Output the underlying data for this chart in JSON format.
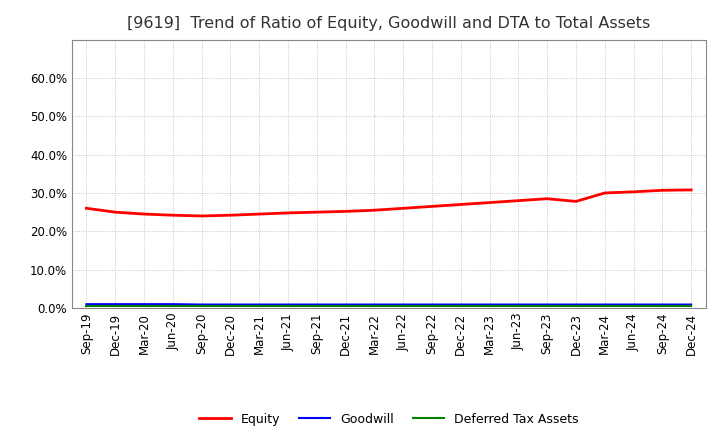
{
  "title": "[9619]  Trend of Ratio of Equity, Goodwill and DTA to Total Assets",
  "x_labels": [
    "Sep-19",
    "Dec-19",
    "Mar-20",
    "Jun-20",
    "Sep-20",
    "Dec-20",
    "Mar-21",
    "Jun-21",
    "Sep-21",
    "Dec-21",
    "Mar-22",
    "Jun-22",
    "Sep-22",
    "Dec-22",
    "Mar-23",
    "Jun-23",
    "Sep-23",
    "Dec-23",
    "Mar-24",
    "Jun-24",
    "Sep-24",
    "Dec-24"
  ],
  "equity": [
    0.26,
    0.25,
    0.245,
    0.242,
    0.24,
    0.242,
    0.245,
    0.248,
    0.25,
    0.252,
    0.255,
    0.26,
    0.265,
    0.27,
    0.275,
    0.28,
    0.285,
    0.278,
    0.3,
    0.303,
    0.307,
    0.308
  ],
  "goodwill": [
    0.01,
    0.01,
    0.01,
    0.01,
    0.009,
    0.009,
    0.009,
    0.009,
    0.009,
    0.009,
    0.009,
    0.009,
    0.009,
    0.009,
    0.009,
    0.009,
    0.009,
    0.009,
    0.009,
    0.009,
    0.009,
    0.009
  ],
  "dta": [
    0.006,
    0.006,
    0.006,
    0.006,
    0.006,
    0.006,
    0.006,
    0.006,
    0.006,
    0.006,
    0.006,
    0.006,
    0.006,
    0.006,
    0.006,
    0.006,
    0.006,
    0.006,
    0.006,
    0.006,
    0.006,
    0.006
  ],
  "equity_color": "#FF0000",
  "goodwill_color": "#0000FF",
  "dta_color": "#008000",
  "ylim": [
    0.0,
    0.7
  ],
  "yticks": [
    0.0,
    0.1,
    0.2,
    0.3,
    0.4,
    0.5,
    0.6
  ],
  "background_color": "#FFFFFF",
  "plot_bg_color": "#FFFFFF",
  "grid_color": "#999999",
  "title_fontsize": 11.5,
  "tick_fontsize": 8.5,
  "legend_labels": [
    "Equity",
    "Goodwill",
    "Deferred Tax Assets"
  ]
}
